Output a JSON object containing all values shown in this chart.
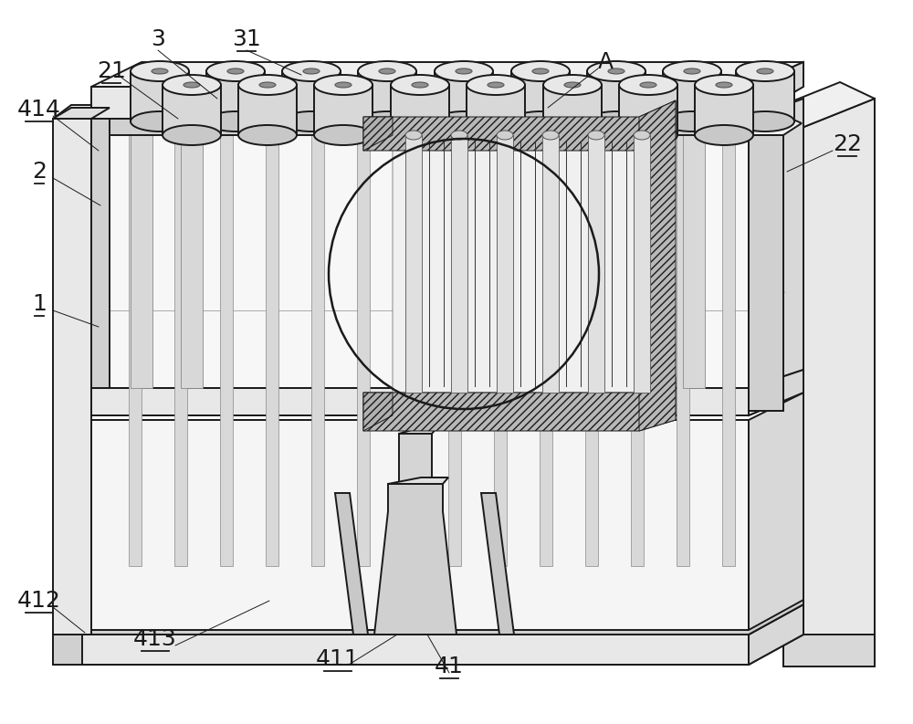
{
  "bg_color": "#ffffff",
  "line_color": "#1a1a1a",
  "figure_width": 10.0,
  "figure_height": 7.93,
  "dpi": 100,
  "font_size": 18,
  "label_underline": [
    "21",
    "414",
    "2",
    "22",
    "1",
    "412",
    "413",
    "411",
    "41",
    "31"
  ],
  "labels_info": [
    [
      "3",
      173,
      43,
      false
    ],
    [
      "31",
      270,
      43,
      true
    ],
    [
      "21",
      122,
      78,
      true
    ],
    [
      "414",
      43,
      120,
      true
    ],
    [
      "2",
      43,
      188,
      true
    ],
    [
      "22",
      928,
      158,
      true
    ],
    [
      "A",
      663,
      68,
      false
    ],
    [
      "1",
      43,
      333,
      true
    ],
    [
      "412",
      43,
      658,
      true
    ],
    [
      "413",
      170,
      700,
      true
    ],
    [
      "411",
      370,
      722,
      true
    ],
    [
      "41",
      492,
      730,
      true
    ]
  ],
  "leader_lines": [
    [
      173,
      55,
      238,
      108
    ],
    [
      270,
      55,
      330,
      82
    ],
    [
      133,
      85,
      195,
      130
    ],
    [
      58,
      127,
      108,
      165
    ],
    [
      58,
      195,
      110,
      225
    ],
    [
      912,
      165,
      862,
      188
    ],
    [
      655,
      75,
      600,
      118
    ],
    [
      58,
      340,
      108,
      358
    ],
    [
      58,
      665,
      93,
      693
    ],
    [
      192,
      707,
      295,
      658
    ],
    [
      382,
      728,
      435,
      695
    ],
    [
      492,
      737,
      468,
      695
    ]
  ]
}
